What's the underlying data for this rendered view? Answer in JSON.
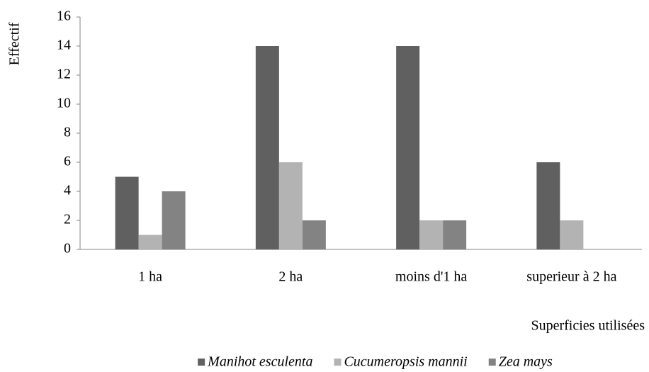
{
  "chart_data": {
    "type": "bar",
    "y_label": "Effectif",
    "x_label": "Superficies utilisées",
    "categories": [
      "1 ha",
      "2 ha",
      "moins d'1 ha",
      "superieur à 2 ha"
    ],
    "series": [
      {
        "name": "Manihot esculenta",
        "color": "#606060",
        "values": [
          5,
          14,
          14,
          6
        ]
      },
      {
        "name": "Cucumeropsis mannii",
        "color": "#b3b3b3",
        "values": [
          1,
          6,
          2,
          2
        ]
      },
      {
        "name": "Zea mays",
        "color": "#838383",
        "values": [
          4,
          2,
          2,
          0
        ]
      }
    ],
    "ylim": [
      0,
      16
    ],
    "yticks": [
      0,
      2,
      4,
      6,
      8,
      10,
      12,
      14,
      16
    ],
    "grid": false,
    "legend": "bottom"
  }
}
